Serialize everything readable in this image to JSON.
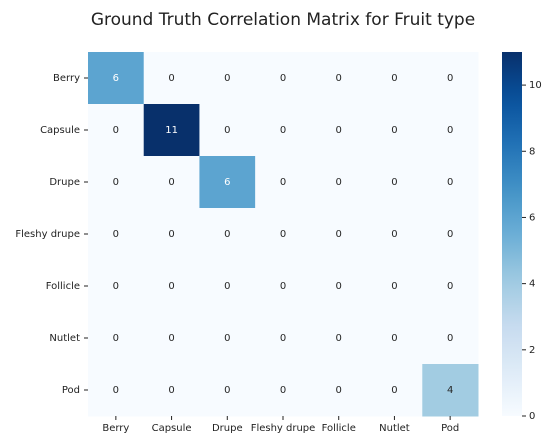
{
  "chart_data": {
    "type": "heatmap",
    "title": "Ground Truth Correlation Matrix for Fruit type",
    "x_categories": [
      "Berry",
      "Capsule",
      "Drupe",
      "Fleshy drupe",
      "Follicle",
      "Nutlet",
      "Pod"
    ],
    "y_categories": [
      "Berry",
      "Capsule",
      "Drupe",
      "Fleshy drupe",
      "Follicle",
      "Nutlet",
      "Pod"
    ],
    "values": [
      [
        6,
        0,
        0,
        0,
        0,
        0,
        0
      ],
      [
        0,
        11,
        0,
        0,
        0,
        0,
        0
      ],
      [
        0,
        0,
        6,
        0,
        0,
        0,
        0
      ],
      [
        0,
        0,
        0,
        0,
        0,
        0,
        0
      ],
      [
        0,
        0,
        0,
        0,
        0,
        0,
        0
      ],
      [
        0,
        0,
        0,
        0,
        0,
        0,
        0
      ],
      [
        0,
        0,
        0,
        0,
        0,
        0,
        4
      ]
    ],
    "colormap": "Blues",
    "clim": [
      0,
      11
    ],
    "cticks": [
      0,
      2,
      4,
      6,
      8,
      10
    ]
  }
}
